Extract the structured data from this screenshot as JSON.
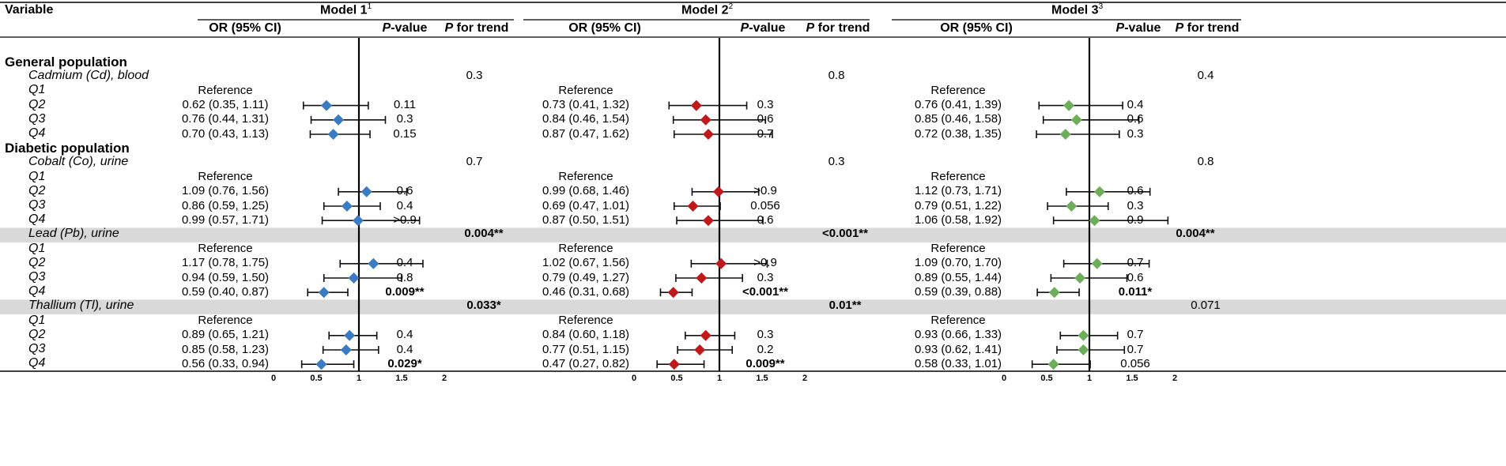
{
  "header": {
    "variable": "Variable",
    "models": [
      {
        "name": "Model 1",
        "sup": "1"
      },
      {
        "name": "Model 2",
        "sup": "2"
      },
      {
        "name": "Model 3",
        "sup": "3"
      }
    ],
    "or_col": "OR (95% CI)",
    "p_col": {
      "italic": "P",
      "rest": "-value"
    },
    "trend_col": {
      "italic": "P",
      "rest": " for trend"
    }
  },
  "colors": {
    "model1": "#3A7BC4",
    "model2": "#C0191C",
    "model3": "#6EAD5A",
    "band": "#D9D9D9"
  },
  "chart_data": {
    "type": "forest",
    "xlabel": "",
    "xlim": [
      0,
      2
    ],
    "reference_line": 1,
    "ticks": [
      "0",
      "0.5",
      "1",
      "1.5",
      "2"
    ],
    "rows": [
      {
        "type": "section",
        "label": "General population"
      },
      {
        "type": "var",
        "label": "Cadmium (Cd), blood",
        "trend": [
          {
            "t": "0.3"
          },
          {
            "t": "0.8"
          },
          {
            "t": "0.4"
          }
        ]
      },
      {
        "type": "ref",
        "label": "Q1",
        "ref_text": "Reference"
      },
      {
        "type": "data",
        "label": "Q2",
        "cells": [
          {
            "or": 0.62,
            "lo": 0.35,
            "hi": 1.11,
            "text": "0.62 (0.35, 1.11)",
            "p": "0.11"
          },
          {
            "or": 0.73,
            "lo": 0.41,
            "hi": 1.32,
            "text": "0.73 (0.41, 1.32)",
            "p": "0.3"
          },
          {
            "or": 0.76,
            "lo": 0.41,
            "hi": 1.39,
            "text": "0.76 (0.41, 1.39)",
            "p": "0.4"
          }
        ]
      },
      {
        "type": "data",
        "label": "Q3",
        "cells": [
          {
            "or": 0.76,
            "lo": 0.44,
            "hi": 1.31,
            "text": "0.76 (0.44, 1.31)",
            "p": "0.3"
          },
          {
            "or": 0.84,
            "lo": 0.46,
            "hi": 1.54,
            "text": "0.84 (0.46, 1.54)",
            "p": "0.6"
          },
          {
            "or": 0.85,
            "lo": 0.46,
            "hi": 1.58,
            "text": "0.85 (0.46, 1.58)",
            "p": "0.6"
          }
        ]
      },
      {
        "type": "data",
        "label": "Q4",
        "cells": [
          {
            "or": 0.7,
            "lo": 0.43,
            "hi": 1.13,
            "text": "0.70 (0.43, 1.13)",
            "p": "0.15"
          },
          {
            "or": 0.87,
            "lo": 0.47,
            "hi": 1.62,
            "text": "0.87 (0.47, 1.62)",
            "p": "0.7"
          },
          {
            "or": 0.72,
            "lo": 0.38,
            "hi": 1.35,
            "text": "0.72 (0.38, 1.35)",
            "p": "0.3"
          }
        ]
      },
      {
        "type": "section",
        "label": "Diabetic population"
      },
      {
        "type": "var",
        "label": "Cobalt (Co), urine",
        "trend": [
          {
            "t": "0.7"
          },
          {
            "t": "0.3"
          },
          {
            "t": "0.8"
          }
        ]
      },
      {
        "type": "ref",
        "label": "Q1",
        "ref_text": "Reference"
      },
      {
        "type": "data",
        "label": "Q2",
        "cells": [
          {
            "or": 1.09,
            "lo": 0.76,
            "hi": 1.56,
            "text": "1.09 (0.76, 1.56)",
            "p": "0.6"
          },
          {
            "or": 0.99,
            "lo": 0.68,
            "hi": 1.46,
            "text": "0.99 (0.68, 1.46)",
            "p": ">0.9"
          },
          {
            "or": 1.12,
            "lo": 0.73,
            "hi": 1.71,
            "text": "1.12 (0.73, 1.71)",
            "p": "0.6"
          }
        ]
      },
      {
        "type": "data",
        "label": "Q3",
        "cells": [
          {
            "or": 0.86,
            "lo": 0.59,
            "hi": 1.25,
            "text": "0.86 (0.59, 1.25)",
            "p": "0.4"
          },
          {
            "or": 0.69,
            "lo": 0.47,
            "hi": 1.01,
            "text": "0.69 (0.47, 1.01)",
            "p": "0.056"
          },
          {
            "or": 0.79,
            "lo": 0.51,
            "hi": 1.22,
            "text": "0.79 (0.51, 1.22)",
            "p": "0.3"
          }
        ]
      },
      {
        "type": "data",
        "label": "Q4",
        "cells": [
          {
            "or": 0.99,
            "lo": 0.57,
            "hi": 1.71,
            "text": "0.99 (0.57, 1.71)",
            "p": ">0.9"
          },
          {
            "or": 0.87,
            "lo": 0.5,
            "hi": 1.51,
            "text": "0.87 (0.50, 1.51)",
            "p": "0.6"
          },
          {
            "or": 1.06,
            "lo": 0.58,
            "hi": 1.92,
            "text": "1.06 (0.58, 1.92)",
            "p": "0.9"
          }
        ]
      },
      {
        "type": "var",
        "label": "Lead (Pb), urine",
        "shaded": true,
        "trend": [
          {
            "t": "0.004**",
            "bold": true
          },
          {
            "t": "<0.001**",
            "bold": true
          },
          {
            "t": "0.004**",
            "bold": true
          }
        ]
      },
      {
        "type": "ref",
        "label": "Q1",
        "ref_text": "Reference"
      },
      {
        "type": "data",
        "label": "Q2",
        "cells": [
          {
            "or": 1.17,
            "lo": 0.78,
            "hi": 1.75,
            "text": "1.17 (0.78, 1.75)",
            "p": "0.4"
          },
          {
            "or": 1.02,
            "lo": 0.67,
            "hi": 1.56,
            "text": "1.02 (0.67, 1.56)",
            "p": ">0.9"
          },
          {
            "or": 1.09,
            "lo": 0.7,
            "hi": 1.7,
            "text": "1.09 (0.70, 1.70)",
            "p": "0.7"
          }
        ]
      },
      {
        "type": "data",
        "label": "Q3",
        "cells": [
          {
            "or": 0.94,
            "lo": 0.59,
            "hi": 1.5,
            "text": "0.94 (0.59, 1.50)",
            "p": "0.8"
          },
          {
            "or": 0.79,
            "lo": 0.49,
            "hi": 1.27,
            "text": "0.79 (0.49, 1.27)",
            "p": "0.3"
          },
          {
            "or": 0.89,
            "lo": 0.55,
            "hi": 1.44,
            "text": "0.89 (0.55, 1.44)",
            "p": "0.6"
          }
        ]
      },
      {
        "type": "data",
        "label": "Q4",
        "cells": [
          {
            "or": 0.59,
            "lo": 0.4,
            "hi": 0.87,
            "text": "0.59 (0.40, 0.87)",
            "p": "0.009**",
            "p_bold": true
          },
          {
            "or": 0.46,
            "lo": 0.31,
            "hi": 0.68,
            "text": "0.46 (0.31, 0.68)",
            "p": "<0.001**",
            "p_bold": true
          },
          {
            "or": 0.59,
            "lo": 0.39,
            "hi": 0.88,
            "text": "0.59 (0.39, 0.88)",
            "p": "0.011*",
            "p_bold": true
          }
        ]
      },
      {
        "type": "var",
        "label": "Thallium (Tl), urine",
        "shaded": true,
        "trend": [
          {
            "t": "0.033*",
            "bold": true
          },
          {
            "t": "0.01**",
            "bold": true
          },
          {
            "t": "0.071"
          }
        ]
      },
      {
        "type": "ref",
        "label": "Q1",
        "ref_text": "Reference"
      },
      {
        "type": "data",
        "label": "Q2",
        "cells": [
          {
            "or": 0.89,
            "lo": 0.65,
            "hi": 1.21,
            "text": "0.89 (0.65, 1.21)",
            "p": "0.4"
          },
          {
            "or": 0.84,
            "lo": 0.6,
            "hi": 1.18,
            "text": "0.84 (0.60, 1.18)",
            "p": "0.3"
          },
          {
            "or": 0.93,
            "lo": 0.66,
            "hi": 1.33,
            "text": "0.93 (0.66, 1.33)",
            "p": "0.7"
          }
        ]
      },
      {
        "type": "data",
        "label": "Q3",
        "cells": [
          {
            "or": 0.85,
            "lo": 0.58,
            "hi": 1.23,
            "text": "0.85 (0.58, 1.23)",
            "p": "0.4"
          },
          {
            "or": 0.77,
            "lo": 0.51,
            "hi": 1.15,
            "text": "0.77 (0.51, 1.15)",
            "p": "0.2"
          },
          {
            "or": 0.93,
            "lo": 0.62,
            "hi": 1.41,
            "text": "0.93 (0.62, 1.41)",
            "p": "0.7"
          }
        ]
      },
      {
        "type": "data",
        "label": "Q4",
        "cells": [
          {
            "or": 0.56,
            "lo": 0.33,
            "hi": 0.94,
            "text": "0.56 (0.33, 0.94)",
            "p": "0.029*",
            "p_bold": true
          },
          {
            "or": 0.47,
            "lo": 0.27,
            "hi": 0.82,
            "text": "0.47 (0.27, 0.82)",
            "p": "0.009**",
            "p_bold": true
          },
          {
            "or": 0.58,
            "lo": 0.33,
            "hi": 1.01,
            "text": "0.58 (0.33, 1.01)",
            "p": "0.056"
          }
        ]
      }
    ]
  }
}
